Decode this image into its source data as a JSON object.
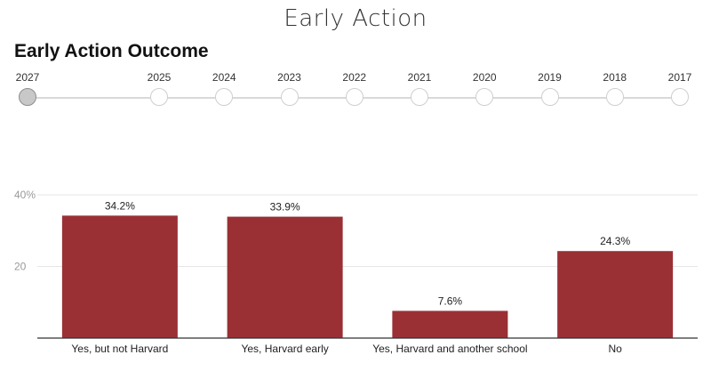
{
  "page": {
    "title": "Early Action"
  },
  "chart_title": "Early Action Outcome",
  "timeline": {
    "years": [
      "2027",
      "2025",
      "2024",
      "2023",
      "2022",
      "2021",
      "2020",
      "2019",
      "2018",
      "2017"
    ],
    "selected": "2027"
  },
  "colors": {
    "bar": "#9a3034",
    "grid": "#e6e6e6",
    "axis": "#333333"
  },
  "chart_data": {
    "type": "bar",
    "title": "Early Action Outcome",
    "categories": [
      "Yes, but not Harvard",
      "Yes, Harvard early",
      "Yes, Harvard and another school",
      "No"
    ],
    "values": [
      34.2,
      33.9,
      7.6,
      24.3
    ],
    "value_labels": [
      "34.2%",
      "33.9%",
      "7.6%",
      "24.3%"
    ],
    "y_ticks": [
      {
        "value": 20,
        "label": "20"
      },
      {
        "value": 40,
        "label": "40%"
      }
    ],
    "ylim": [
      0,
      40
    ],
    "xlabel": "",
    "ylabel": "",
    "grid": true,
    "legend": "none"
  }
}
